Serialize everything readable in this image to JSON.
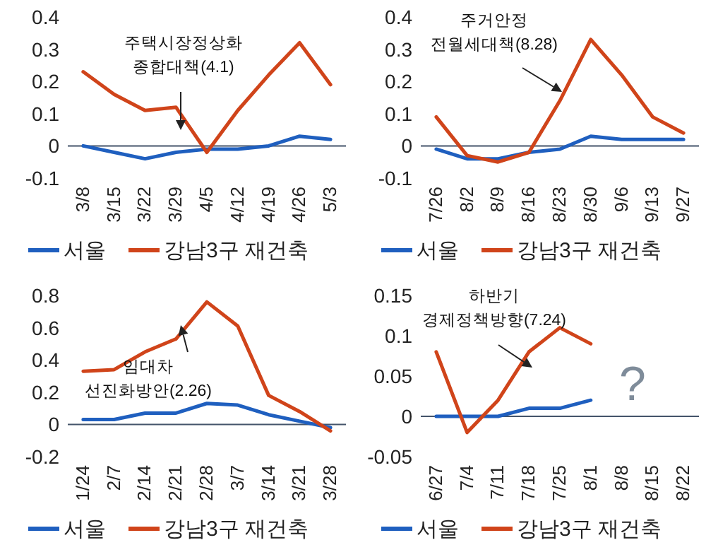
{
  "chart_data": [
    {
      "type": "line",
      "categories": [
        "3/8",
        "3/15",
        "3/22",
        "3/29",
        "4/5",
        "4/12",
        "4/19",
        "4/26",
        "5/3"
      ],
      "series": [
        {
          "name": "서울",
          "color": "#1f5fbf",
          "values": [
            0,
            -0.02,
            -0.04,
            -0.02,
            -0.01,
            -0.01,
            0,
            0.03,
            0.02
          ]
        },
        {
          "name": "강남3구 재건축",
          "color": "#d0441a",
          "values": [
            0.23,
            0.16,
            0.11,
            0.12,
            -0.02,
            0.11,
            0.22,
            0.32,
            0.19
          ]
        }
      ],
      "ylim": [
        -0.1,
        0.4
      ],
      "yticks": [
        -0.1,
        0,
        0.1,
        0.2,
        0.3,
        0.4
      ],
      "legend": "bottom",
      "annotations": [
        "주택시장정상화\n종합대책(4.1)"
      ]
    },
    {
      "type": "line",
      "categories": [
        "7/26",
        "8/2",
        "8/9",
        "8/16",
        "8/23",
        "8/30",
        "9/6",
        "9/13",
        "9/27"
      ],
      "series": [
        {
          "name": "서울",
          "color": "#1f5fbf",
          "values": [
            -0.01,
            -0.04,
            -0.04,
            -0.02,
            -0.01,
            0.03,
            0.02,
            0.02,
            0.02
          ]
        },
        {
          "name": "강남3구 재건축",
          "color": "#d0441a",
          "values": [
            0.09,
            -0.03,
            -0.05,
            -0.02,
            0.14,
            0.33,
            0.22,
            0.09,
            0.04
          ]
        }
      ],
      "ylim": [
        -0.1,
        0.4
      ],
      "yticks": [
        -0.1,
        0,
        0.1,
        0.2,
        0.3,
        0.4
      ],
      "legend": "bottom",
      "annotations": [
        "주거안정\n전월세대책(8.28)"
      ]
    },
    {
      "type": "line",
      "categories": [
        "1/24",
        "2/7",
        "2/14",
        "2/21",
        "2/28",
        "3/7",
        "3/14",
        "3/21",
        "3/28"
      ],
      "series": [
        {
          "name": "서울",
          "color": "#1f5fbf",
          "values": [
            0.03,
            0.03,
            0.07,
            0.07,
            0.13,
            0.12,
            0.06,
            0.02,
            -0.02
          ]
        },
        {
          "name": "강남3구 재건축",
          "color": "#d0441a",
          "values": [
            0.33,
            0.34,
            0.45,
            0.53,
            0.76,
            0.61,
            0.18,
            0.08,
            -0.04
          ]
        }
      ],
      "ylim": [
        -0.2,
        0.8
      ],
      "yticks": [
        -0.2,
        0,
        0.2,
        0.4,
        0.6,
        0.8
      ],
      "legend": "bottom",
      "annotations": [
        "임대차\n선진화방안(2.26)"
      ]
    },
    {
      "type": "line",
      "categories": [
        "6/27",
        "7/4",
        "7/11",
        "7/18",
        "7/25",
        "8/1",
        "8/8",
        "8/15",
        "8/22"
      ],
      "series": [
        {
          "name": "서울",
          "color": "#1f5fbf",
          "values": [
            0,
            0,
            0,
            0.01,
            0.01,
            0.02,
            null,
            null,
            null
          ]
        },
        {
          "name": "강남3구 재건축",
          "color": "#d0441a",
          "values": [
            0.08,
            -0.02,
            0.02,
            0.08,
            0.11,
            0.09,
            null,
            null,
            null
          ]
        }
      ],
      "ylim": [
        -0.05,
        0.15
      ],
      "yticks": [
        -0.05,
        0,
        0.05,
        0.1,
        0.15
      ],
      "legend": "bottom",
      "annotations": [
        "하반기\n경제정책방향(7.24)",
        "?"
      ]
    }
  ]
}
